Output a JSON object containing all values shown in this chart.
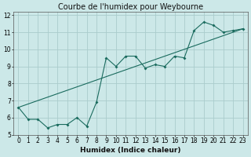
{
  "title": "Courbe de l'humidex pour Weybourne",
  "xlabel": "Humidex (Indice chaleur)",
  "bg_color": "#cce8e8",
  "grid_color": "#aacccc",
  "line_color": "#1a6b5e",
  "xlim": [
    -0.5,
    23.5
  ],
  "ylim": [
    5,
    12.2
  ],
  "yticks": [
    5,
    6,
    7,
    8,
    9,
    10,
    11,
    12
  ],
  "xticks": [
    0,
    1,
    2,
    3,
    4,
    5,
    6,
    7,
    8,
    9,
    10,
    11,
    12,
    13,
    14,
    15,
    16,
    17,
    18,
    19,
    20,
    21,
    22,
    23
  ],
  "series1_x": [
    0,
    1,
    2,
    3,
    4,
    5,
    6,
    7,
    8,
    9,
    10,
    11,
    12,
    13,
    14,
    15,
    16,
    17,
    18,
    19,
    20,
    21,
    22,
    23
  ],
  "series1_y": [
    6.6,
    5.9,
    5.9,
    5.4,
    5.6,
    5.6,
    6.0,
    5.5,
    6.9,
    9.5,
    9.0,
    9.6,
    9.6,
    8.9,
    9.1,
    9.0,
    9.6,
    9.5,
    11.1,
    11.6,
    11.4,
    11.0,
    11.1,
    11.2
  ],
  "series2_x": [
    0,
    23
  ],
  "series2_y": [
    6.6,
    11.2
  ],
  "title_fontsize": 7,
  "label_fontsize": 6.5,
  "tick_fontsize": 5.5
}
